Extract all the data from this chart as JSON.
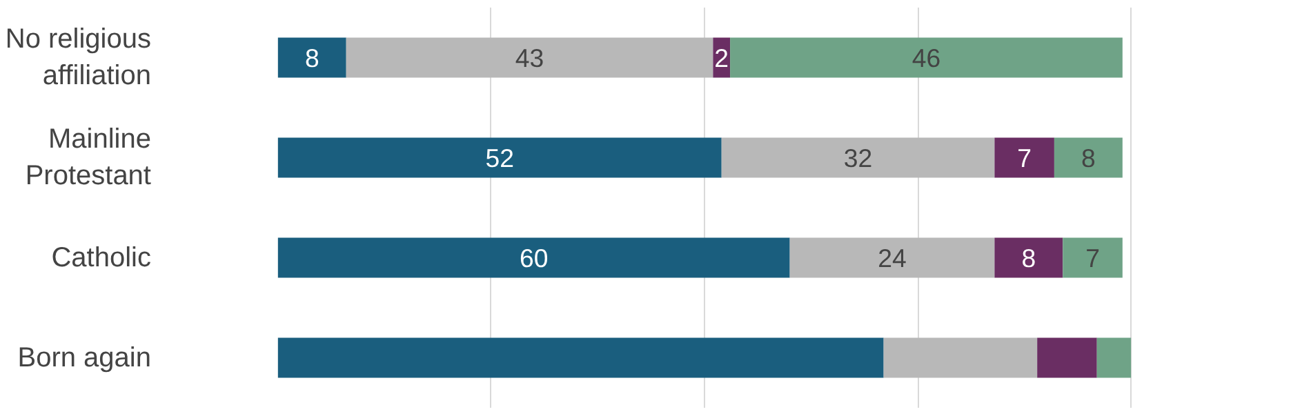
{
  "chart_data": {
    "type": "bar",
    "orientation": "horizontal",
    "stacked": true,
    "categories": [
      "No religious affiliation",
      "Mainline Protestant",
      "Catholic",
      "Born again"
    ],
    "series": [
      {
        "color": "#1a5e7e",
        "values": [
          8,
          52,
          60,
          71
        ],
        "value_labels": [
          "8",
          "52",
          "60",
          null
        ]
      },
      {
        "color": "#b8b8b8",
        "values": [
          43,
          32,
          24,
          18
        ],
        "value_labels": [
          "43",
          "32",
          "24",
          null
        ]
      },
      {
        "color": "#6a2e63",
        "values": [
          2,
          7,
          8,
          7
        ],
        "value_labels": [
          "2",
          "7",
          "8",
          null
        ]
      },
      {
        "color": "#6fa387",
        "values": [
          46,
          8,
          7,
          4
        ],
        "value_labels": [
          "46",
          "8",
          "7",
          null
        ]
      }
    ],
    "xticks": [
      {
        "value": 25,
        "label": null
      },
      {
        "value": 50,
        "label": null
      },
      {
        "value": 75,
        "label": null
      },
      {
        "value": 100,
        "label": null
      }
    ],
    "grid": "x",
    "tick_labels": "y"
  }
}
